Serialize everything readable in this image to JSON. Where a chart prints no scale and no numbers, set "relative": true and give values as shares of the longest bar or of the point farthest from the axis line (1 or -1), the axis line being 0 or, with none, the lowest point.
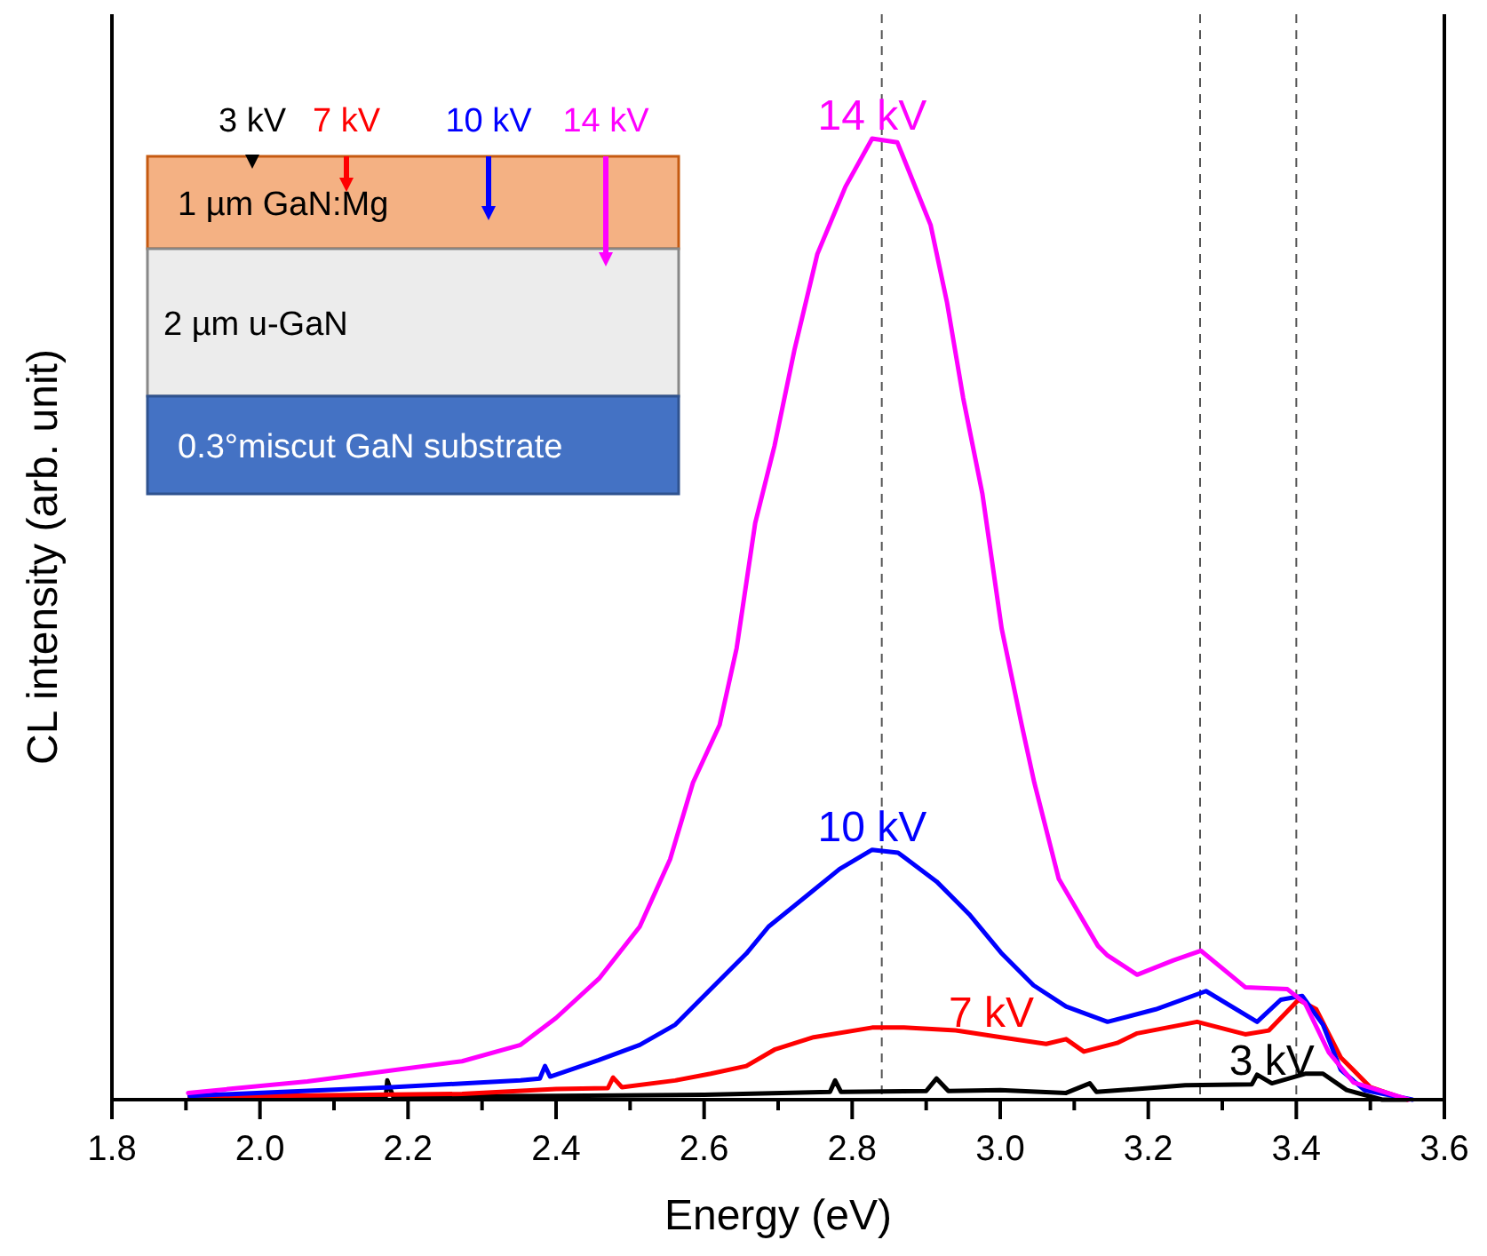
{
  "chart_data": {
    "type": "line",
    "xlabel": "Energy (eV)",
    "ylabel": "CL intensity (arb. unit)",
    "relative": true,
    "xlim": [
      1.8,
      3.6
    ],
    "xticks": [
      1.8,
      {
        "value": 1.9,
        "label": null
      },
      "2.0",
      {
        "value": 2.1,
        "label": null
      },
      2.2,
      {
        "value": 2.3,
        "label": null
      },
      2.4,
      {
        "value": 2.5,
        "label": null
      },
      2.6,
      {
        "value": 2.7,
        "label": null
      },
      2.8,
      {
        "value": 2.9,
        "label": null
      },
      {
        "value": 3.0,
        "label": "3.0"
      },
      {
        "value": 3.1,
        "label": null
      },
      3.2,
      {
        "value": 3.3,
        "label": null
      },
      3.4,
      {
        "value": 3.5,
        "label": null
      },
      3.6
    ],
    "grid": false,
    "marker": "none",
    "line_style": "solid",
    "ref_lines": [
      {
        "axis": "x",
        "value": 2.84,
        "color": "#555555",
        "line_style": "dashed"
      },
      {
        "axis": "x",
        "value": 3.27,
        "color": "#555555",
        "line_style": "dashed"
      },
      {
        "axis": "x",
        "value": 3.4,
        "color": "#555555",
        "line_style": "dashed"
      }
    ],
    "annotations": [
      "3 kV",
      "7 kV",
      "10 kV",
      "14 kV",
      "1 µm GaN:Mg",
      "2 µm u-GaN",
      "0.3°miscut GaN substrate"
    ],
    "series": [
      {
        "name": "3 kV",
        "color": "#000000",
        "x": [
          1.905,
          2.17,
          2.172,
          2.18,
          2.4,
          2.6,
          2.77,
          2.777,
          2.785,
          2.9,
          2.914,
          2.93,
          3.0,
          3.089,
          3.121,
          3.13,
          3.25,
          3.34,
          3.347,
          3.367,
          3.412,
          3.436,
          3.468,
          3.516,
          3.55
        ],
        "values": [
          0.002,
          0.003,
          0.02,
          0.003,
          0.004,
          0.005,
          0.008,
          0.02,
          0.008,
          0.009,
          0.022,
          0.009,
          0.01,
          0.007,
          0.017,
          0.008,
          0.015,
          0.016,
          0.026,
          0.017,
          0.027,
          0.027,
          0.01,
          0,
          0
        ]
      },
      {
        "name": "7 kV",
        "color": "#ff0000",
        "x": [
          1.905,
          2.273,
          2.4,
          2.47,
          2.477,
          2.489,
          2.561,
          2.609,
          2.657,
          2.695,
          2.748,
          2.827,
          2.87,
          2.94,
          3.001,
          3.062,
          3.089,
          3.113,
          3.158,
          3.185,
          3.266,
          3.331,
          3.363,
          3.403,
          3.427,
          3.46,
          3.5,
          3.55
        ],
        "values": [
          0.003,
          0.006,
          0.011,
          0.012,
          0.023,
          0.013,
          0.02,
          0.027,
          0.035,
          0.052,
          0.065,
          0.075,
          0.075,
          0.072,
          0.065,
          0.058,
          0.063,
          0.05,
          0.059,
          0.069,
          0.081,
          0.068,
          0.072,
          0.104,
          0.094,
          0.044,
          0.013,
          0
        ]
      },
      {
        "name": "10 kV",
        "color": "#0000ff",
        "x": [
          1.905,
          2.177,
          2.352,
          2.378,
          2.385,
          2.392,
          2.4,
          2.457,
          2.513,
          2.561,
          2.609,
          2.657,
          2.687,
          2.74,
          2.783,
          2.827,
          2.862,
          2.914,
          2.958,
          3.001,
          3.045,
          3.089,
          3.145,
          3.21,
          3.278,
          3.347,
          3.379,
          3.408,
          3.436,
          3.46,
          3.492,
          3.557
        ],
        "values": [
          0.004,
          0.013,
          0.02,
          0.022,
          0.035,
          0.024,
          0.026,
          0.041,
          0.057,
          0.078,
          0.115,
          0.152,
          0.18,
          0.213,
          0.24,
          0.26,
          0.257,
          0.227,
          0.193,
          0.153,
          0.119,
          0.097,
          0.081,
          0.094,
          0.113,
          0.081,
          0.104,
          0.108,
          0.078,
          0.031,
          0.01,
          0
        ]
      },
      {
        "name": "14 kV",
        "color": "#ff00ff",
        "x": [
          1.903,
          2.064,
          2.273,
          2.352,
          2.4,
          2.458,
          2.513,
          2.554,
          2.585,
          2.621,
          2.644,
          2.669,
          2.695,
          2.722,
          2.753,
          2.791,
          2.827,
          2.861,
          2.906,
          2.928,
          2.95,
          2.976,
          3.002,
          3.029,
          3.046,
          3.079,
          3.132,
          3.145,
          3.185,
          3.234,
          3.271,
          3.331,
          3.388,
          3.412,
          3.444,
          3.477,
          3.552
        ],
        "values": [
          0.007,
          0.019,
          0.04,
          0.057,
          0.085,
          0.126,
          0.18,
          0.25,
          0.33,
          0.39,
          0.47,
          0.6,
          0.68,
          0.78,
          0.88,
          0.95,
          1,
          0.996,
          0.91,
          0.83,
          0.73,
          0.63,
          0.49,
          0.39,
          0.33,
          0.23,
          0.16,
          0.15,
          0.13,
          0.145,
          0.155,
          0.117,
          0.115,
          0.1,
          0.049,
          0.018,
          0
        ]
      }
    ]
  }
}
